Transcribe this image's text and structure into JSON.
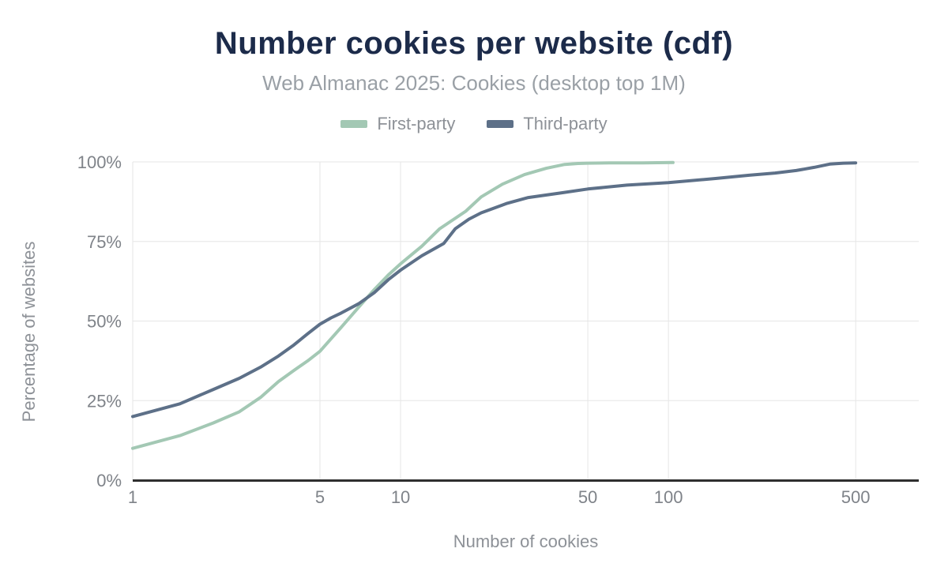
{
  "chart_data": {
    "type": "line",
    "title": "Number cookies per website (cdf)",
    "subtitle": "Web Almanac 2025: Cookies (desktop top 1M)",
    "xlabel": "Number of cookies",
    "ylabel": "Percentage of websites",
    "x_scale": "log",
    "x_ticks": [
      1,
      5,
      10,
      50,
      100,
      500
    ],
    "x_range": [
      1,
      860
    ],
    "y_ticks": [
      0,
      25,
      50,
      75,
      100
    ],
    "y_tick_suffix": "%",
    "ylim": [
      0,
      100
    ],
    "grid": true,
    "legend_position": "top",
    "colors": {
      "title": "#1c2b4a",
      "subtitle": "#9aa0a6",
      "tick_label": "#7f8389",
      "axis_title": "#8d9197",
      "gridline": "#e6e6e6",
      "axis_line": "#2f2f2f",
      "background": "#ffffff"
    },
    "series": [
      {
        "name": "First-party",
        "color": "#a3c8b4",
        "points": [
          [
            1,
            10
          ],
          [
            1.5,
            14
          ],
          [
            2,
            18
          ],
          [
            2.5,
            21.5
          ],
          [
            3,
            26
          ],
          [
            3.5,
            31
          ],
          [
            4,
            34.5
          ],
          [
            4.5,
            37.5
          ],
          [
            5,
            40.5
          ],
          [
            6,
            48
          ],
          [
            7,
            54.5
          ],
          [
            8,
            60
          ],
          [
            9,
            64.5
          ],
          [
            10,
            68
          ],
          [
            12,
            73.5
          ],
          [
            14,
            79
          ],
          [
            17.5,
            84.5
          ],
          [
            20,
            89
          ],
          [
            24,
            93
          ],
          [
            29,
            96
          ],
          [
            35,
            98
          ],
          [
            41,
            99.2
          ],
          [
            46,
            99.5
          ],
          [
            50,
            99.6
          ],
          [
            60,
            99.7
          ],
          [
            80,
            99.7
          ],
          [
            104,
            99.8
          ]
        ]
      },
      {
        "name": "Third-party",
        "color": "#5d7088",
        "points": [
          [
            1,
            20
          ],
          [
            1.5,
            24
          ],
          [
            2,
            28.5
          ],
          [
            2.5,
            32
          ],
          [
            3,
            35.5
          ],
          [
            3.5,
            39
          ],
          [
            4,
            42.5
          ],
          [
            4.5,
            46
          ],
          [
            5,
            49
          ],
          [
            5.5,
            51
          ],
          [
            6,
            52.5
          ],
          [
            7,
            55.5
          ],
          [
            8,
            59
          ],
          [
            9,
            63
          ],
          [
            10,
            66
          ],
          [
            12,
            70.5
          ],
          [
            14.5,
            74.4
          ],
          [
            16,
            79
          ],
          [
            18,
            82
          ],
          [
            20,
            84
          ],
          [
            25,
            87
          ],
          [
            30,
            88.8
          ],
          [
            40,
            90.3
          ],
          [
            50,
            91.5
          ],
          [
            70,
            92.7
          ],
          [
            100,
            93.5
          ],
          [
            150,
            94.8
          ],
          [
            200,
            95.8
          ],
          [
            250,
            96.5
          ],
          [
            300,
            97.3
          ],
          [
            350,
            98.3
          ],
          [
            400,
            99.3
          ],
          [
            450,
            99.6
          ],
          [
            500,
            99.7
          ]
        ]
      }
    ]
  }
}
